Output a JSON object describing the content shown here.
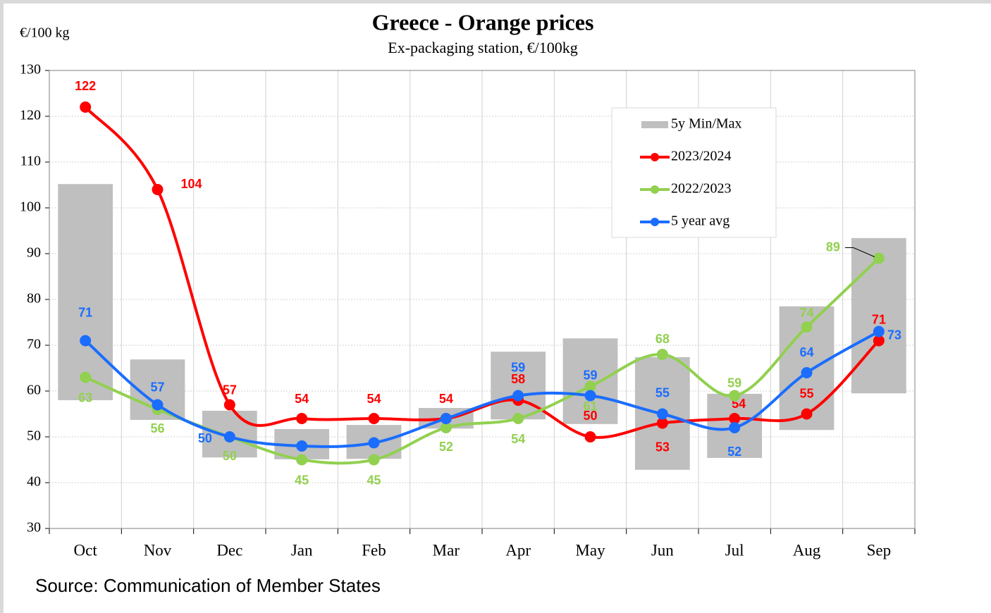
{
  "chart_data": {
    "type": "line",
    "title": "Greece - Orange prices",
    "subtitle": "Ex-packaging station, €/100kg",
    "y_axis_label": "€/100 kg",
    "source": "Source: Communication of Member States",
    "categories": [
      "Oct",
      "Nov",
      "Dec",
      "Jan",
      "Feb",
      "Mar",
      "Apr",
      "May",
      "Jun",
      "Jul",
      "Aug",
      "Sep"
    ],
    "ylim": [
      30,
      130
    ],
    "yticks": [
      30,
      40,
      50,
      60,
      70,
      80,
      90,
      100,
      110,
      120,
      130
    ],
    "grid": true,
    "legend": "upper right",
    "range": {
      "name": "5y Min/Max",
      "color": "#bfbfbf",
      "low": [
        58,
        53.7,
        45.5,
        45.1,
        45.2,
        51.8,
        53.8,
        52.8,
        42.8,
        45.4,
        51.5,
        59.5
      ],
      "high": [
        105.2,
        66.9,
        55.7,
        51.7,
        52.6,
        56.3,
        68.6,
        71.5,
        67.4,
        59.4,
        78.5,
        93.4
      ]
    },
    "series": [
      {
        "name": "2023/2024",
        "color": "#ff0000",
        "values": [
          122,
          104,
          57,
          54,
          54,
          54,
          58,
          50,
          53,
          54,
          55,
          71
        ]
      },
      {
        "name": "2022/2023",
        "color": "#92d050",
        "values": [
          63,
          56,
          50,
          45,
          45,
          52,
          54,
          61,
          68,
          59,
          74,
          89
        ]
      },
      {
        "name": "5 year avg",
        "color": "#1a6dff",
        "values": [
          71,
          57,
          50,
          48,
          48.7,
          54,
          59,
          59,
          55,
          52,
          64,
          73
        ],
        "value_labels": [
          "71",
          "57",
          "50",
          null,
          null,
          null,
          "59",
          "59",
          "55",
          "52",
          "64",
          "73"
        ]
      }
    ]
  }
}
